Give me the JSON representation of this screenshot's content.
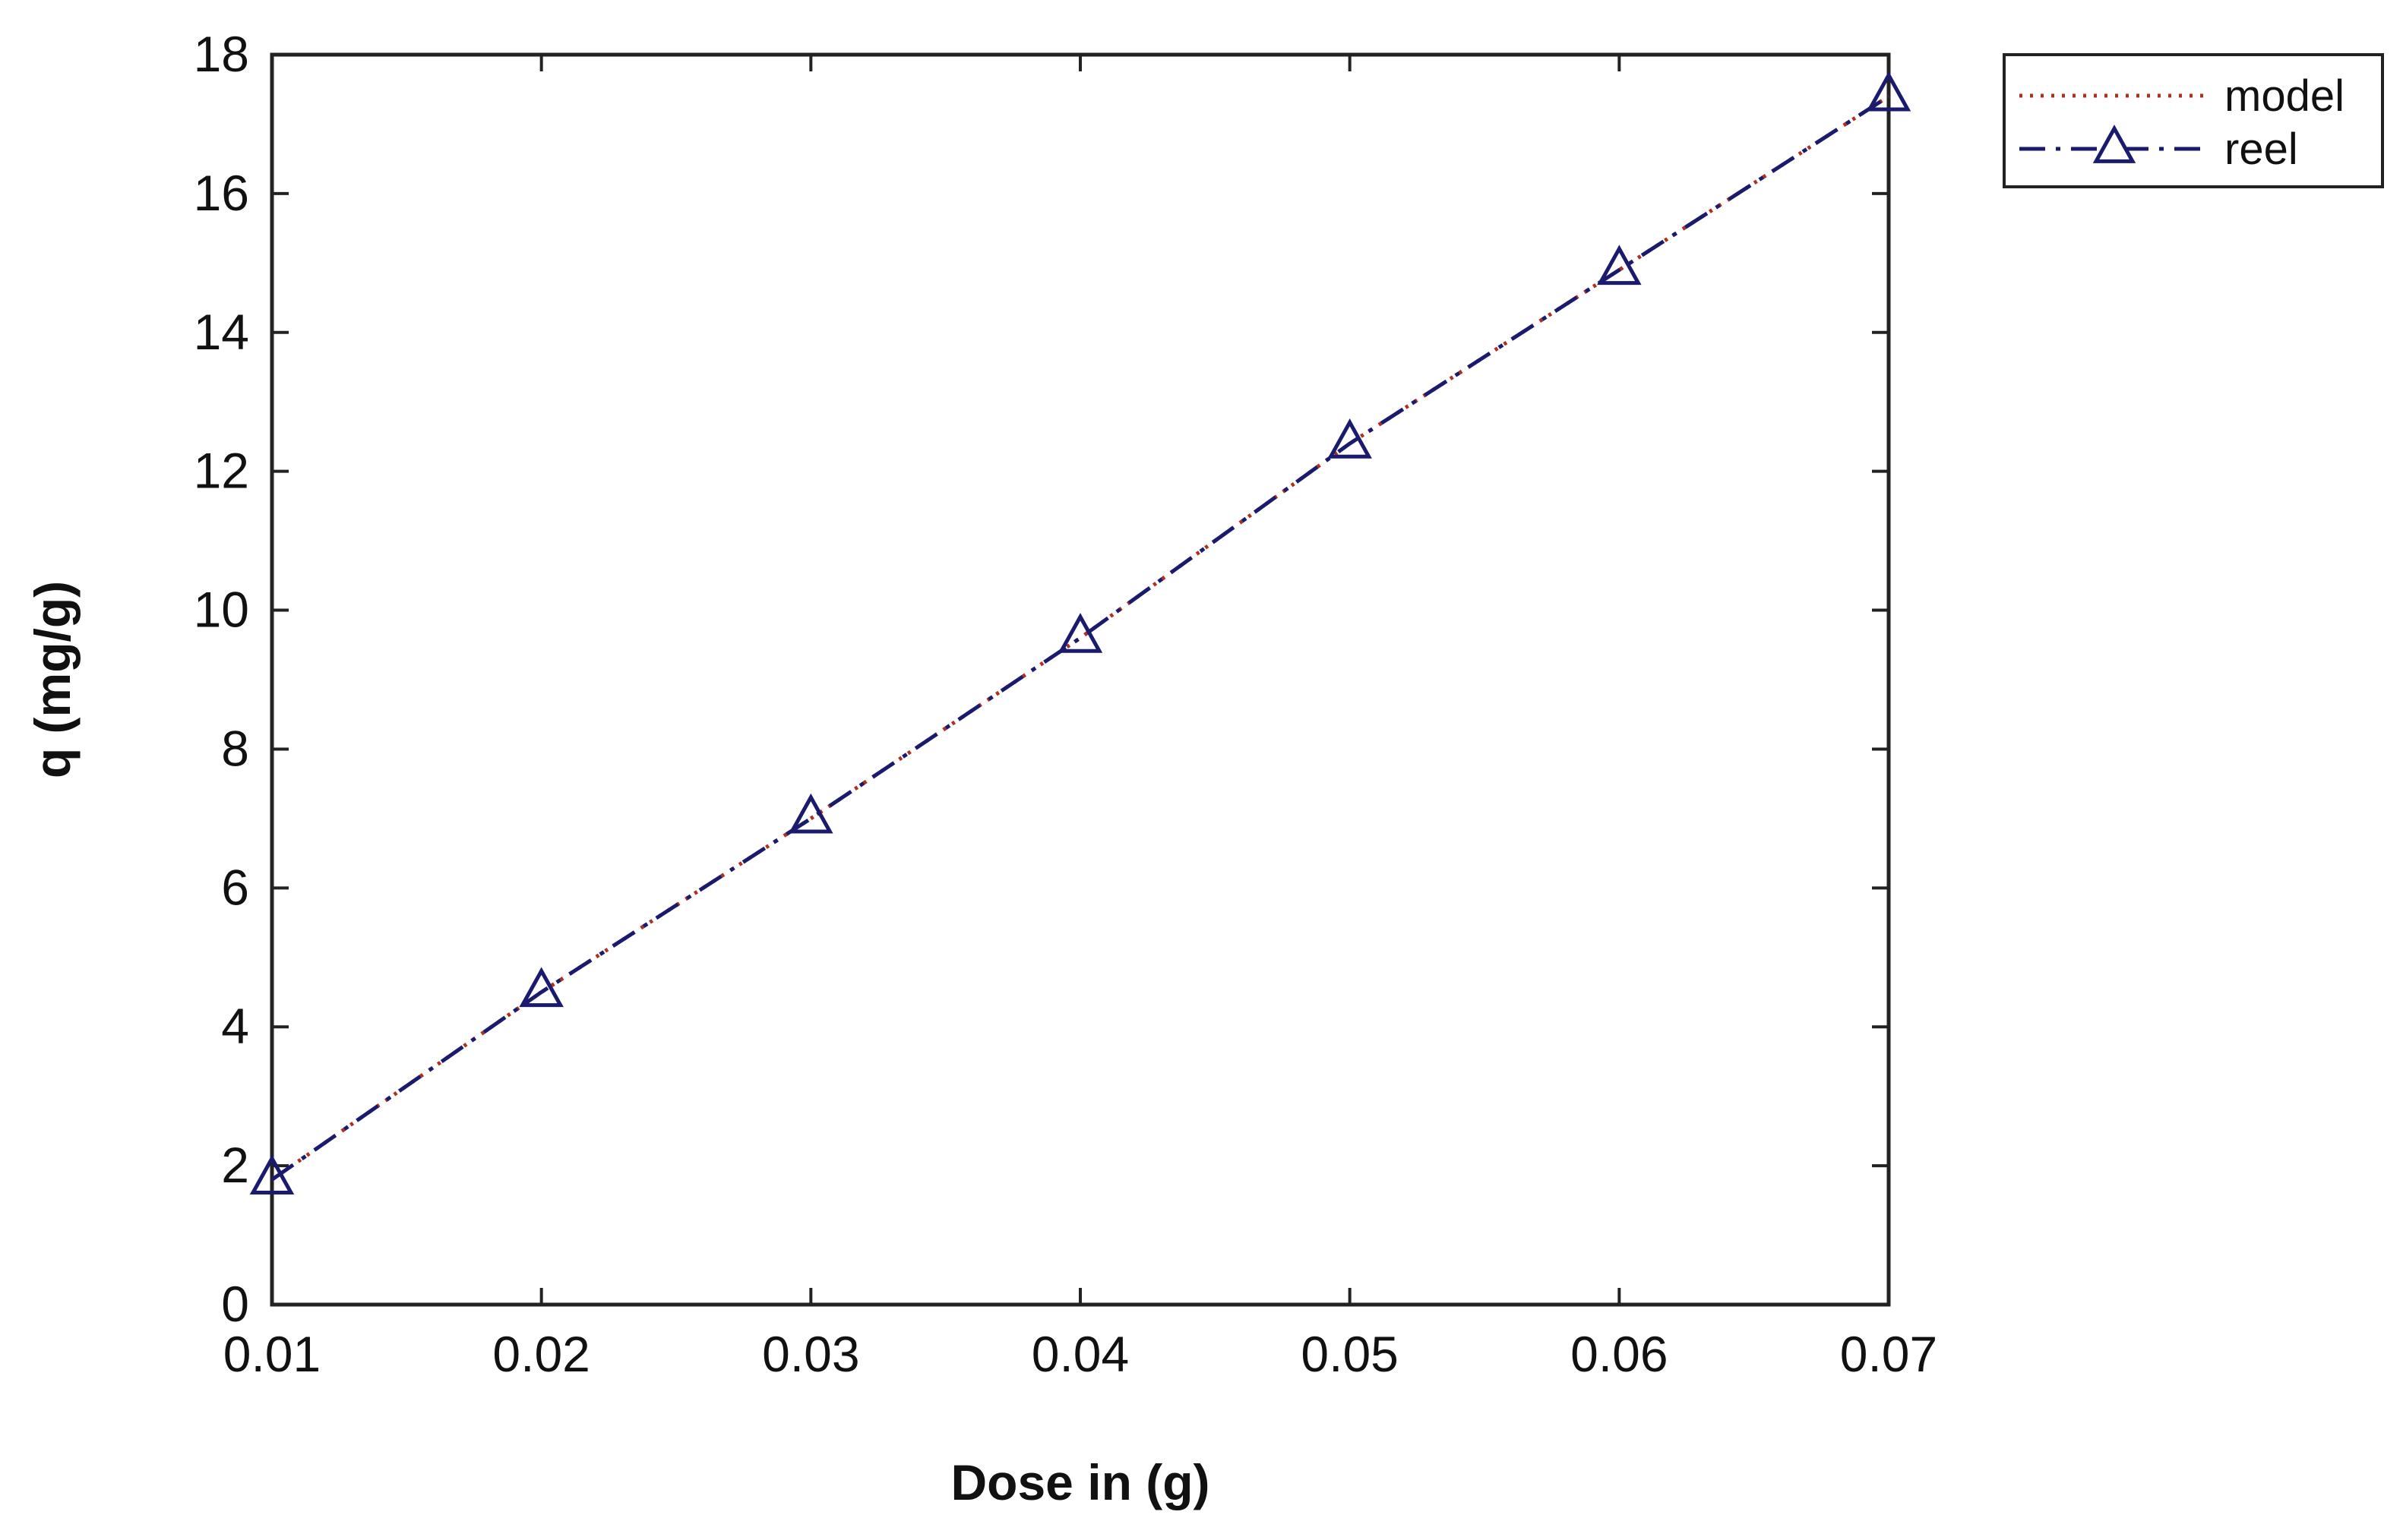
{
  "chart_data": {
    "type": "line",
    "title": "",
    "xlabel": "Dose in (g)",
    "ylabel": "q (mg/g)",
    "x": [
      0.01,
      0.02,
      0.03,
      0.04,
      0.05,
      0.06,
      0.07
    ],
    "xlim": [
      0.01,
      0.07
    ],
    "ylim": [
      0,
      18
    ],
    "x_ticks": [
      "0.01",
      "0.02",
      "0.03",
      "0.04",
      "0.05",
      "0.06",
      "0.07"
    ],
    "y_ticks": [
      "0",
      "2",
      "4",
      "6",
      "8",
      "10",
      "12",
      "14",
      "16",
      "18"
    ],
    "grid": false,
    "legend_position": "outside-top-right",
    "series": [
      {
        "name": "model",
        "values": [
          1.8,
          4.5,
          7.0,
          9.6,
          12.4,
          14.9,
          17.4
        ],
        "color": "#b03020",
        "line_style": "dotted",
        "marker": "none"
      },
      {
        "name": "reel",
        "values": [
          1.8,
          4.5,
          7.0,
          9.6,
          12.4,
          14.9,
          17.4
        ],
        "color": "#1a1a6e",
        "line_style": "dash-dot",
        "marker": "triangle"
      }
    ]
  }
}
